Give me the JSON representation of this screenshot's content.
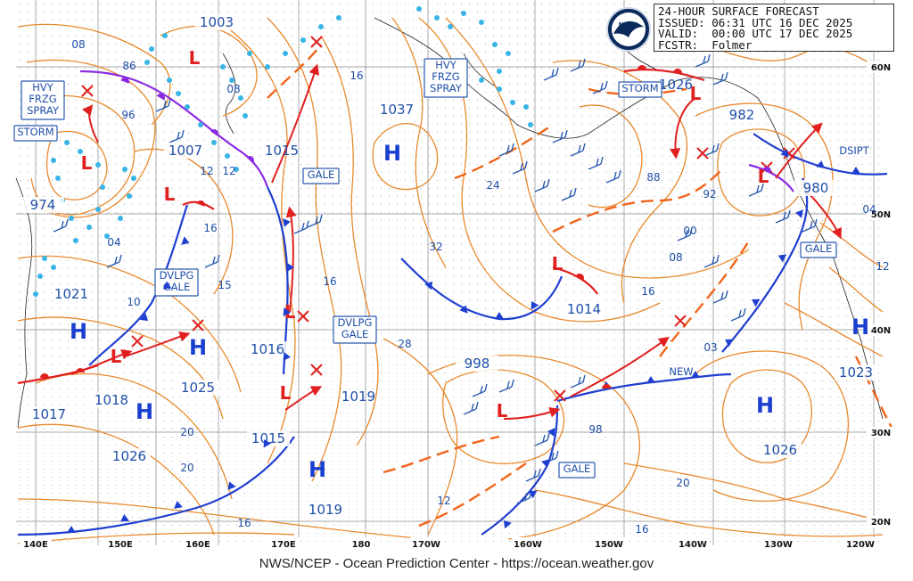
{
  "header": {
    "title": "24-HOUR SURFACE FORECAST",
    "issued": "ISSUED: 06:31 UTC 16 DEC 2025",
    "valid": "VALID:  00:00 UTC 17 DEC 2025",
    "forecaster": "FCSTR:  Folmer"
  },
  "footer": "NWS/NCEP - Ocean Prediction Center - https://ocean.weather.gov",
  "logo": "noaa-logo",
  "lon_labels": [
    "140E",
    "150E",
    "160E",
    "170E",
    "180",
    "170W",
    "160W",
    "150W",
    "140W",
    "130W",
    "120W"
  ],
  "lat_labels": [
    "60N",
    "50N",
    "40N",
    "30N",
    "20N"
  ],
  "highs": [
    {
      "symbol": "H",
      "pressure": "1037"
    },
    {
      "symbol": "H",
      "pressure": "1025"
    },
    {
      "symbol": "H",
      "pressure": "1026"
    },
    {
      "symbol": "H",
      "pressure": "1019"
    },
    {
      "symbol": "H",
      "pressure": "1026"
    },
    {
      "symbol": "H",
      "pressure": "1023"
    },
    {
      "symbol": "H",
      "pressure": "1017"
    }
  ],
  "lows": [
    {
      "symbol": "L",
      "pressure": "974"
    },
    {
      "symbol": "L",
      "pressure": "1003"
    },
    {
      "symbol": "L",
      "pressure": "1007"
    },
    {
      "symbol": "L",
      "pressure": "1016"
    },
    {
      "symbol": "L",
      "pressure": "998"
    },
    {
      "symbol": "L",
      "pressure": "982"
    },
    {
      "symbol": "L",
      "pressure": "980"
    },
    {
      "symbol": "L",
      "pressure": "1018"
    },
    {
      "symbol": "L",
      "pressure": "1014"
    },
    {
      "symbol": "L",
      "pressure": "1015"
    }
  ],
  "pressure_numbers": [
    "86",
    "1021",
    "10",
    "15",
    "16",
    "1015",
    "16",
    "1019",
    "98",
    "03",
    "88",
    "1026",
    "20",
    "12",
    "16",
    "08",
    "12",
    "24",
    "20",
    "28",
    "32",
    "16",
    "04",
    "12",
    "00",
    "08",
    "92",
    "96",
    "16",
    "20",
    "04",
    "08",
    "12",
    "16"
  ],
  "warnings": [
    "HVY FRZG SPRAY",
    "STORM",
    "HVY FRZG SPRAY",
    "STORM",
    "GALE",
    "DVLPG GALE",
    "DVLPG GALE",
    "GALE",
    "GALE",
    "DSIPT",
    "NEW"
  ]
}
